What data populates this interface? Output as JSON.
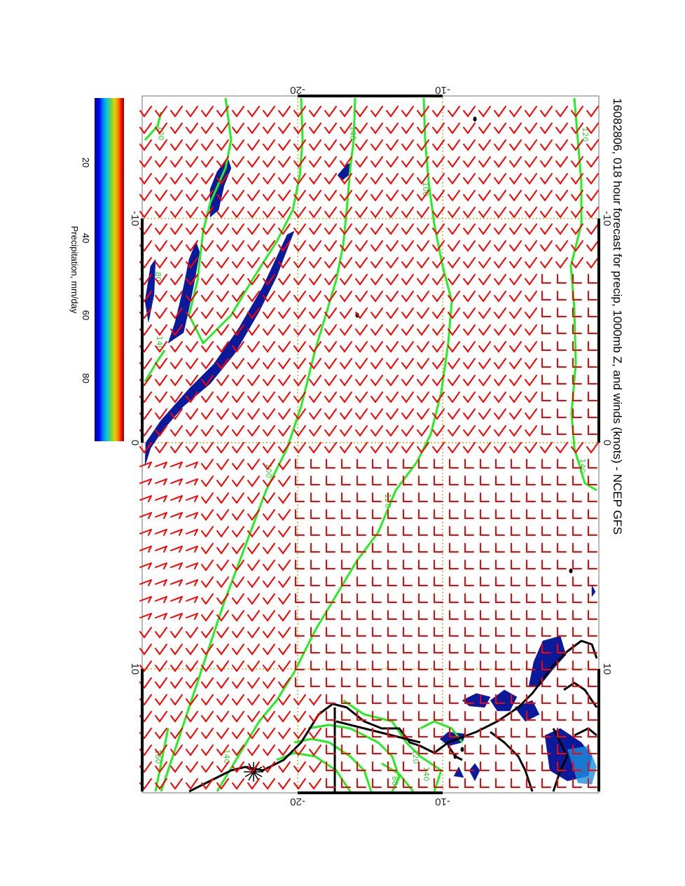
{
  "title": "16082806, 018 hour forecast for precip, 1000mb Z, and winds (knots) - NCEP GFS",
  "colorbar": {
    "label": "Precipitation, mm/day",
    "ticks": [
      "20",
      "40",
      "60",
      "80"
    ],
    "colors": [
      "#000080",
      "#0000ff",
      "#00a0ff",
      "#00e0e0",
      "#60d060",
      "#d0d000",
      "#ff8000",
      "#ff0000",
      "#800000"
    ]
  },
  "axes": {
    "top_ticks": [
      "-20",
      "-10"
    ],
    "bottom_ticks": [
      "-20",
      "-10"
    ],
    "left_ticks": [
      "-10",
      "0",
      "10"
    ],
    "right_ticks": [
      "-10",
      "0",
      "10"
    ]
  },
  "contour_labels": [
    "120",
    "100",
    "140",
    "100",
    "80",
    "140",
    "100",
    "120",
    "140",
    "160",
    "140",
    "120",
    "140",
    "80"
  ],
  "colors": {
    "wind_barb": "#ff0000",
    "contour": "#22ee22",
    "coastline": "#000000",
    "grid": "#d4a017",
    "precip": "#0a1a9a"
  }
}
